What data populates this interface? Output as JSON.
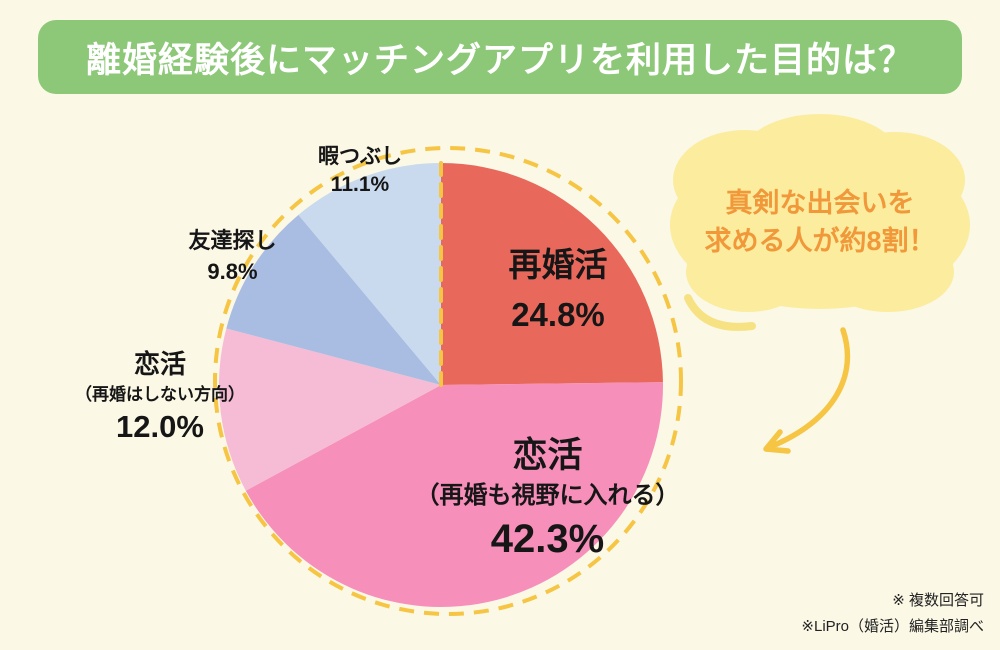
{
  "page": {
    "background_color": "#FBF8E6"
  },
  "banner": {
    "title": "離婚経験後にマッチングアプリを利用した目的は？",
    "bg_color": "#8CC878",
    "text_color": "#FFFFFF"
  },
  "bubble": {
    "line1": "真剣な出会いを",
    "line2": "求める人が約8割！",
    "bg_color": "#FBEC9E",
    "text_color": "#F0983A"
  },
  "footnotes": {
    "note1": "※ 複数回答可",
    "note2": "※LiPro（婚活）編集部調べ"
  },
  "chart_data": {
    "type": "pie",
    "title": "離婚経験後にマッチングアプリを利用した目的は？",
    "unit": "%",
    "direction": "clockwise",
    "start_angle_deg": 0,
    "total": 100.0,
    "legend_position": "none",
    "slices": [
      {
        "key": "saikonkatsu",
        "name": "再婚活",
        "sub": "",
        "value": 24.8,
        "pct_text": "24.8%",
        "color": "#E8695C",
        "label_position": "inside"
      },
      {
        "key": "koikatsu-saikon",
        "name": "恋活",
        "sub": "（再婚も視野に入れる）",
        "value": 42.3,
        "pct_text": "42.3%",
        "color": "#F78FBB",
        "label_position": "inside"
      },
      {
        "key": "koikatsu-no-saikon",
        "name": "恋活",
        "sub": "（再婚はしない方向）",
        "value": 12.0,
        "pct_text": "12.0%",
        "color": "#F6BCD5",
        "label_position": "outside-left"
      },
      {
        "key": "tomodachi",
        "name": "友達探し",
        "sub": "",
        "value": 9.8,
        "pct_text": "9.8%",
        "color": "#A9BDE3",
        "label_position": "outside-upper-left"
      },
      {
        "key": "hima",
        "name": "暇つぶし",
        "sub": "",
        "value": 11.1,
        "pct_text": "11.1%",
        "color": "#C9D9EE",
        "label_position": "outside-top"
      }
    ],
    "decoration": {
      "dashed_outline_color": "#F5C543",
      "arrow_color": "#F5C543"
    }
  }
}
